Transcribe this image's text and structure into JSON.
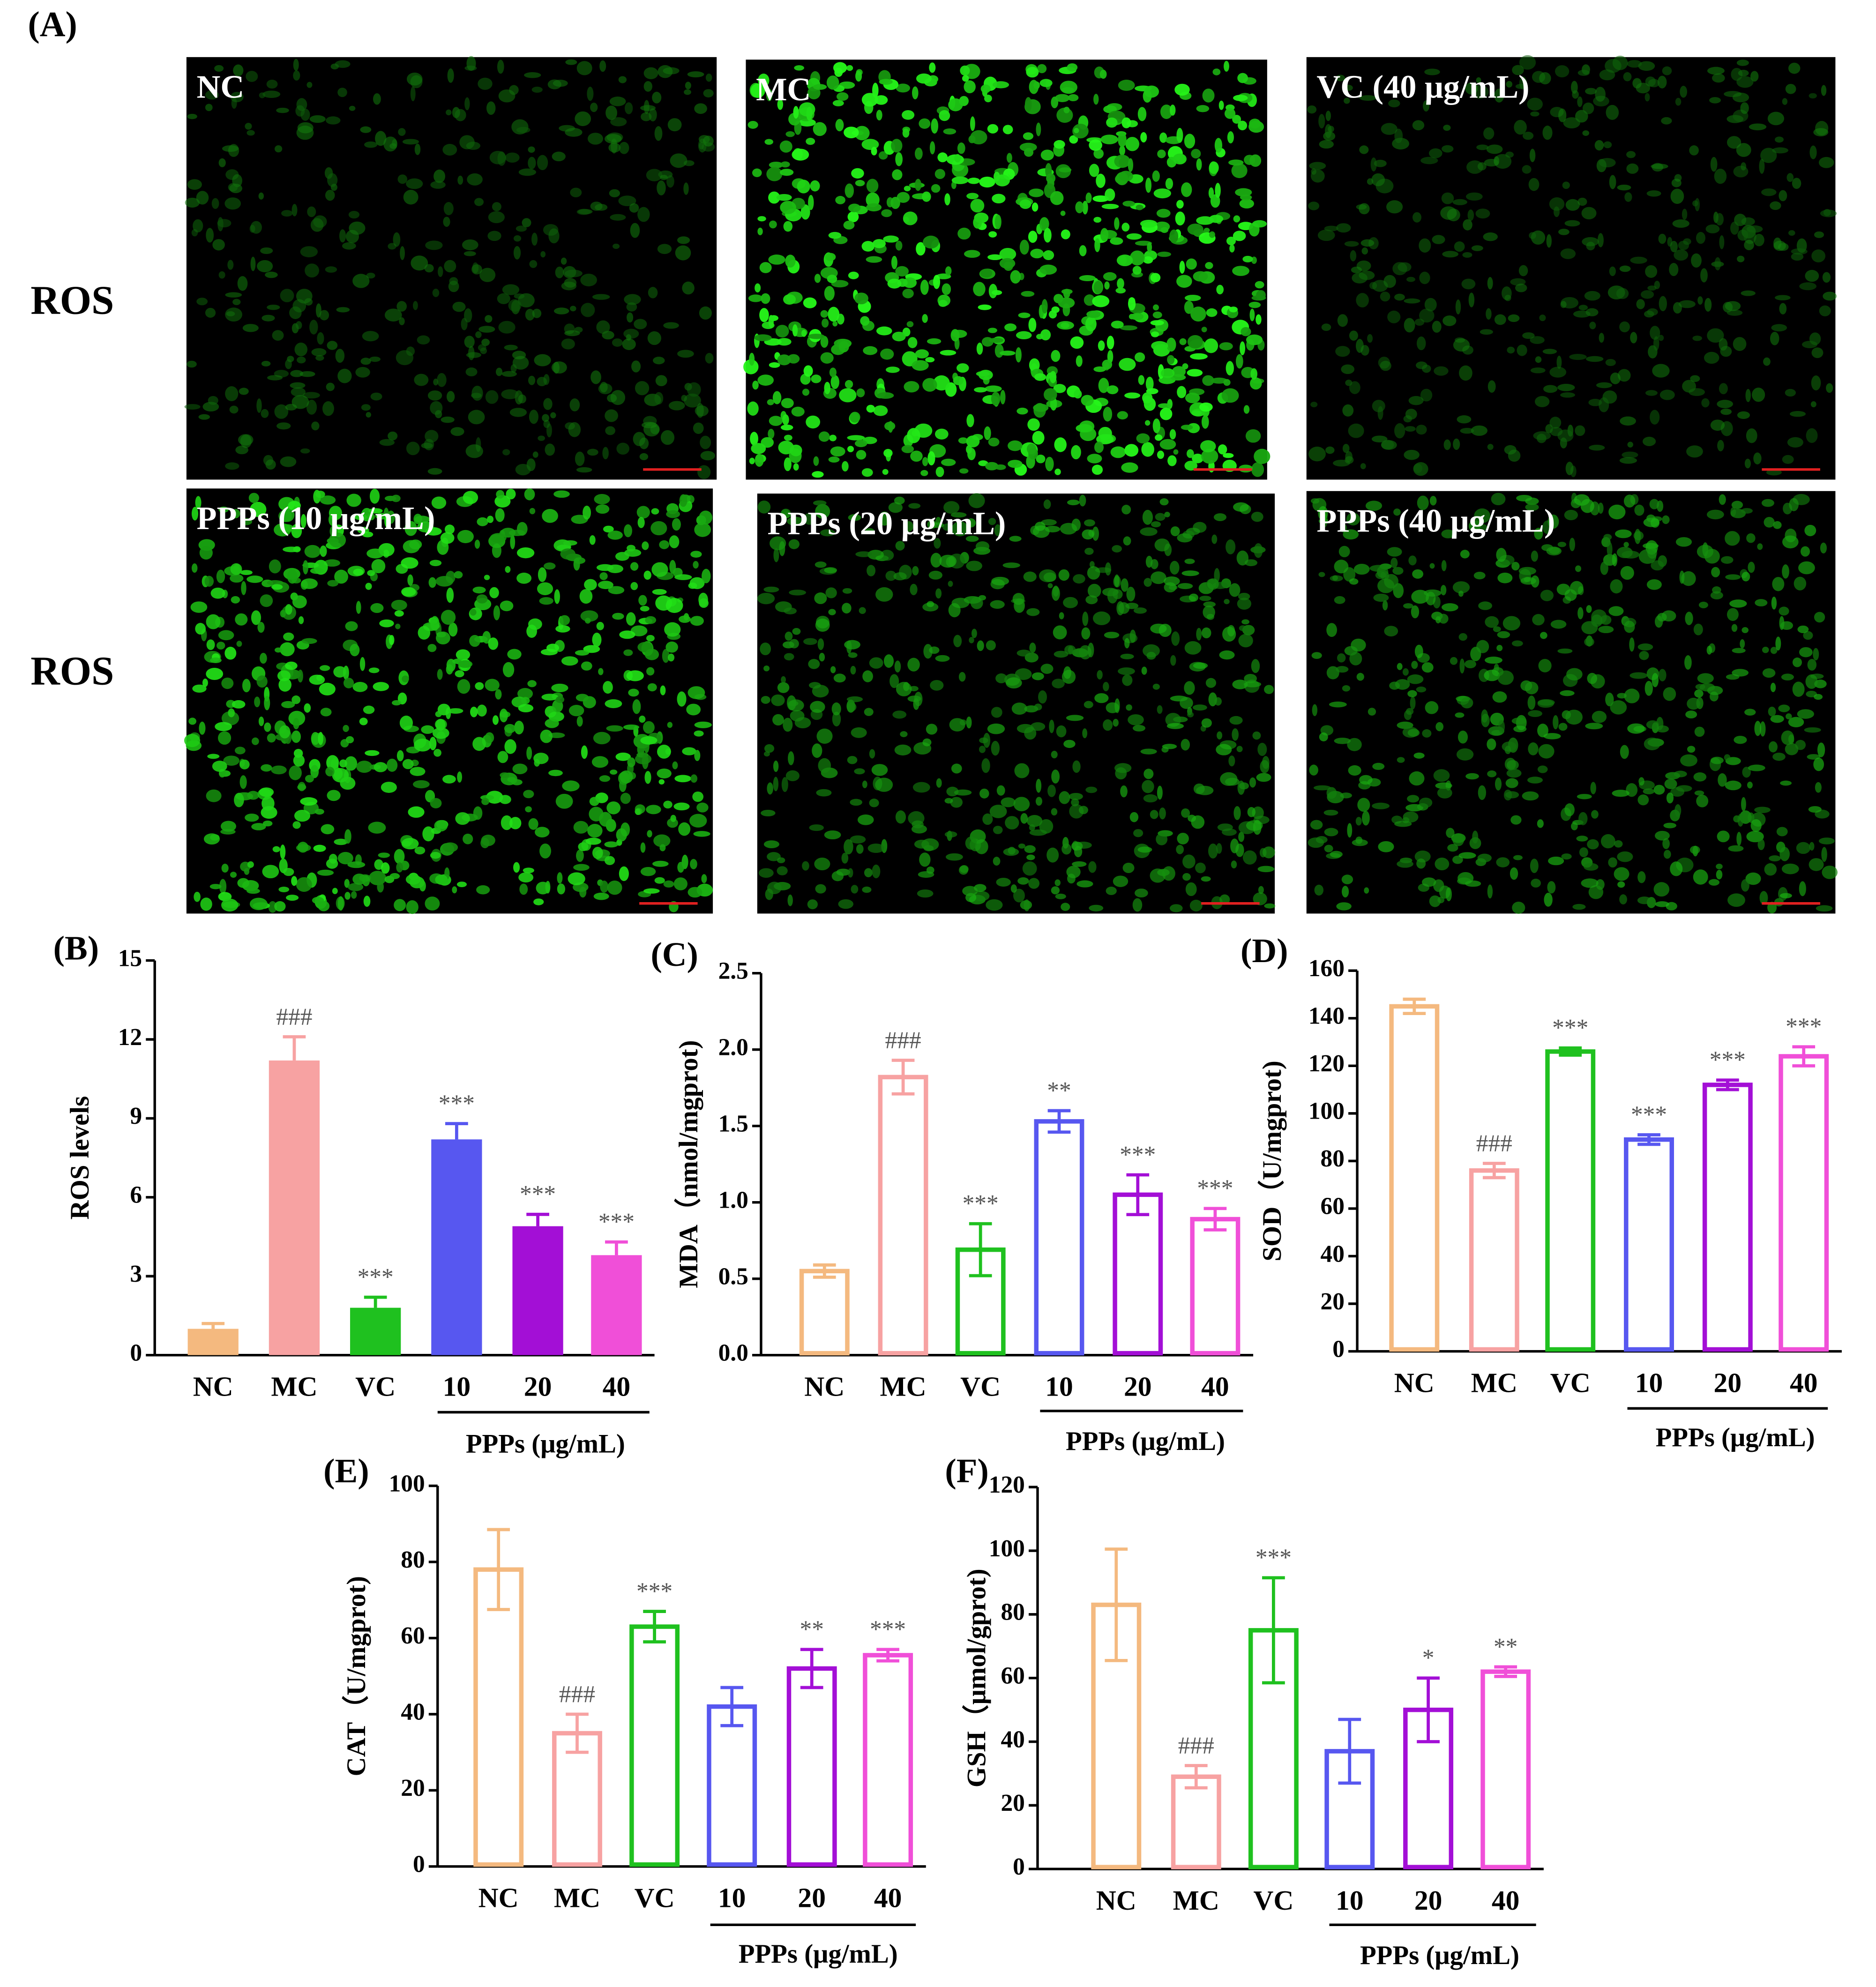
{
  "panel_a": {
    "label": "(A)",
    "row_labels": [
      "ROS",
      "ROS"
    ],
    "images": [
      "NC",
      "MC",
      "VC (40 μg/mL)",
      "PPPs (10 μg/mL)",
      "PPPs (20 μg/mL)",
      "PPPs (40 μg/mL)"
    ]
  },
  "chart_data": [
    {
      "type": "bar",
      "label": "(B)",
      "ylabel": "ROS levels",
      "filled": true,
      "categories": [
        "NC",
        "MC",
        "VC",
        "10",
        "20",
        "40"
      ],
      "group_label": "PPPs (μg/mL)",
      "values": [
        1.0,
        11.2,
        1.8,
        8.2,
        4.9,
        3.8
      ],
      "errors": [
        0.2,
        0.9,
        0.4,
        0.6,
        0.45,
        0.5
      ],
      "annotations": [
        null,
        "###",
        "***",
        "***",
        "***",
        "***"
      ],
      "colors": [
        "#f4b97f",
        "#f7a2a2",
        "#1fc11f",
        "#5757f0",
        "#a30fd6",
        "#f04fd8"
      ],
      "ylim": [
        0,
        15
      ],
      "yticks": [
        0,
        3,
        6,
        9,
        12,
        15
      ]
    },
    {
      "type": "bar",
      "label": "(C)",
      "ylabel": "MDA（nmol/mgprot)",
      "filled": false,
      "categories": [
        "NC",
        "MC",
        "VC",
        "10",
        "20",
        "40"
      ],
      "group_label": "PPPs (μg/mL)",
      "values": [
        0.55,
        1.82,
        0.69,
        1.53,
        1.05,
        0.89
      ],
      "errors": [
        0.04,
        0.11,
        0.17,
        0.07,
        0.13,
        0.07
      ],
      "annotations": [
        null,
        "###",
        "***",
        "**",
        "***",
        "***"
      ],
      "colors": [
        "#f4b97f",
        "#f7a2a2",
        "#1fc11f",
        "#5757f0",
        "#a30fd6",
        "#f04fd8"
      ],
      "ylim": [
        0,
        2.5
      ],
      "yticks": [
        {
          "value": 0,
          "label": "0.0"
        },
        0.5,
        {
          "value": 1,
          "label": "1.0"
        },
        1.5,
        {
          "value": 2,
          "label": "2.0"
        },
        2.5
      ]
    },
    {
      "type": "bar",
      "label": "(D)",
      "ylabel": "SOD（U/mgprot)",
      "filled": false,
      "categories": [
        "NC",
        "MC",
        "VC",
        "10",
        "20",
        "40"
      ],
      "group_label": "PPPs (μg/mL)",
      "values": [
        145,
        76,
        126,
        89,
        112,
        124
      ],
      "errors": [
        3,
        3,
        1.5,
        2,
        2,
        4
      ],
      "annotations": [
        null,
        "###",
        "***",
        "***",
        "***",
        "***"
      ],
      "colors": [
        "#f4b97f",
        "#f7a2a2",
        "#1fc11f",
        "#5757f0",
        "#a30fd6",
        "#f04fd8"
      ],
      "ylim": [
        0,
        160
      ],
      "yticks": [
        0,
        20,
        40,
        60,
        80,
        100,
        120,
        140,
        160
      ]
    },
    {
      "type": "bar",
      "label": "(E)",
      "ylabel": "CAT（U/mgprot)",
      "filled": false,
      "categories": [
        "NC",
        "MC",
        "VC",
        "10",
        "20",
        "40"
      ],
      "group_label": "PPPs (μg/mL)",
      "values": [
        78,
        35,
        63,
        42,
        52,
        55.5
      ],
      "errors": [
        10.5,
        5,
        4,
        5,
        5,
        1.5
      ],
      "annotations": [
        null,
        "###",
        "***",
        null,
        "**",
        "***"
      ],
      "colors": [
        "#f4b97f",
        "#f7a2a2",
        "#1fc11f",
        "#5757f0",
        "#a30fd6",
        "#f04fd8"
      ],
      "ylim": [
        0,
        100
      ],
      "yticks": [
        0,
        20,
        40,
        60,
        80,
        100
      ]
    },
    {
      "type": "bar",
      "label": "(F)",
      "ylabel": "GSH（μmol/gprot)",
      "filled": false,
      "categories": [
        "NC",
        "MC",
        "VC",
        "10",
        "20",
        "40"
      ],
      "group_label": "PPPs (μg/mL)",
      "values": [
        83,
        29,
        75,
        37,
        50,
        62
      ],
      "errors": [
        17.5,
        3.5,
        16.5,
        10,
        10,
        1.5
      ],
      "annotations": [
        null,
        "###",
        "***",
        null,
        "*",
        "**"
      ],
      "colors": [
        "#f4b97f",
        "#f7a2a2",
        "#1fc11f",
        "#5757f0",
        "#a30fd6",
        "#f04fd8"
      ],
      "ylim": [
        0,
        120
      ],
      "yticks": [
        0,
        20,
        40,
        60,
        80,
        100,
        120
      ]
    }
  ]
}
